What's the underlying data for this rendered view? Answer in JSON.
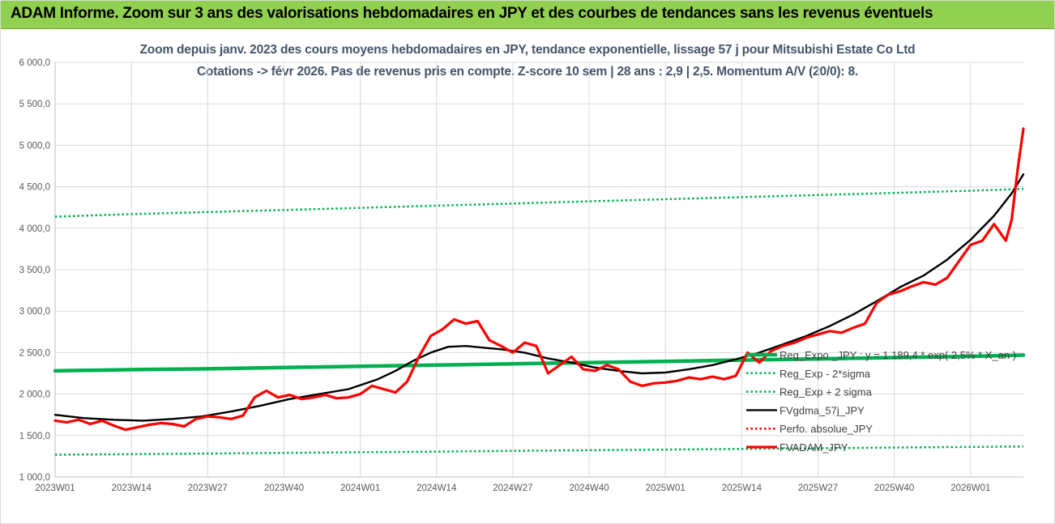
{
  "header": {
    "title": "ADAM Informe. Zoom sur 3 ans des valorisations hebdomadaires en JPY et des courbes de tendances sans les revenus éventuels"
  },
  "chart_data": {
    "type": "line",
    "title": "Zoom depuis janv. 2023 des cours moyens hebdomadaires en JPY, tendance exponentielle, lissage 57 j pour Mitsubishi Estate Co Ltd",
    "subtitle": "Cotations -> févr 2026.  Pas de revenus pris en compte. Z-score 10 sem | 28 ans : 2,9 | 2,5. Momentum A/V (20/0): 8.",
    "xlabel": "",
    "ylabel": "",
    "ylim": [
      1000,
      6000
    ],
    "y_ticks": [
      "1 000,0",
      "1 500,0",
      "2 000,0",
      "2 500,0",
      "3 000,0",
      "3 500,0",
      "4 000,0",
      "4 500,0",
      "5 000,0",
      "5 500,0",
      "6 000,0"
    ],
    "x_ticks": [
      {
        "label": "2023W01",
        "week": 0
      },
      {
        "label": "2023W14",
        "week": 13
      },
      {
        "label": "2023W27",
        "week": 26
      },
      {
        "label": "2023W40",
        "week": 39
      },
      {
        "label": "2024W01",
        "week": 52
      },
      {
        "label": "2024W14",
        "week": 65
      },
      {
        "label": "2024W27",
        "week": 78
      },
      {
        "label": "2024W40",
        "week": 91
      },
      {
        "label": "2025W01",
        "week": 104
      },
      {
        "label": "2025W14",
        "week": 117
      },
      {
        "label": "2025W27",
        "week": 130
      },
      {
        "label": "2025W40",
        "week": 143
      },
      {
        "label": "2026W01",
        "week": 156
      }
    ],
    "x_range": [
      0,
      165
    ],
    "legend_position": "bottom-right",
    "series": [
      {
        "name": "Reg_Expo _JPY : y = 1 189,4 * exp( 2,5% * X_an )",
        "style": "thick-solid",
        "color": "#00b050",
        "x": [
          0,
          4,
          9,
          13,
          26,
          39,
          52,
          65,
          78,
          91,
          104,
          117,
          130,
          143,
          156,
          165
        ],
        "values": [
          2280,
          2285,
          2290,
          2295,
          2305,
          2320,
          2335,
          2350,
          2365,
          2380,
          2395,
          2410,
          2425,
          2440,
          2455,
          2470
        ]
      },
      {
        "name": "Reg_Exp - 2*sigma",
        "style": "dotted",
        "color": "#00b050",
        "x": [
          0,
          13,
          26,
          39,
          52,
          65,
          78,
          91,
          104,
          117,
          130,
          143,
          156,
          165
        ],
        "values": [
          1270,
          1275,
          1283,
          1291,
          1299,
          1307,
          1315,
          1323,
          1331,
          1339,
          1347,
          1355,
          1363,
          1368
        ]
      },
      {
        "name": "Reg_Exp + 2 sigma",
        "style": "dotted",
        "color": "#00b050",
        "x": [
          0,
          13,
          26,
          39,
          52,
          65,
          78,
          91,
          104,
          117,
          130,
          143,
          156,
          165
        ],
        "values": [
          4140,
          4170,
          4195,
          4220,
          4245,
          4272,
          4298,
          4324,
          4350,
          4375,
          4400,
          4426,
          4452,
          4475
        ]
      },
      {
        "name": "FVgdma_57j_JPY",
        "style": "solid",
        "color": "#000000",
        "x": [
          0,
          5,
          10,
          15,
          20,
          25,
          30,
          35,
          40,
          45,
          50,
          55,
          58,
          61,
          64,
          67,
          70,
          73,
          76,
          80,
          84,
          88,
          92,
          96,
          100,
          104,
          108,
          112,
          116,
          120,
          124,
          128,
          132,
          136,
          140,
          144,
          148,
          152,
          156,
          160,
          163,
          165
        ],
        "values": [
          1750,
          1710,
          1690,
          1680,
          1700,
          1730,
          1790,
          1860,
          1940,
          2000,
          2060,
          2180,
          2280,
          2400,
          2500,
          2570,
          2580,
          2560,
          2540,
          2500,
          2430,
          2380,
          2320,
          2280,
          2250,
          2260,
          2300,
          2350,
          2420,
          2500,
          2600,
          2700,
          2820,
          2960,
          3120,
          3290,
          3430,
          3620,
          3860,
          4150,
          4420,
          4650
        ]
      },
      {
        "name": "Perfo. absolue_JPY",
        "style": "dotted",
        "color": "#ff0000",
        "x": [],
        "values": []
      },
      {
        "name": "FVADAM_JPY",
        "style": "thick-solid",
        "color": "#ff0000",
        "x": [
          0,
          2,
          4,
          6,
          8,
          10,
          12,
          14,
          16,
          18,
          20,
          22,
          24,
          26,
          28,
          30,
          32,
          34,
          36,
          38,
          40,
          42,
          44,
          46,
          48,
          50,
          52,
          54,
          56,
          58,
          60,
          62,
          64,
          66,
          68,
          70,
          72,
          74,
          76,
          78,
          80,
          82,
          84,
          86,
          88,
          90,
          92,
          94,
          96,
          98,
          100,
          102,
          104,
          106,
          108,
          110,
          112,
          114,
          116,
          118,
          120,
          122,
          124,
          126,
          128,
          130,
          132,
          134,
          136,
          138,
          140,
          142,
          144,
          146,
          148,
          150,
          152,
          154,
          156,
          158,
          160,
          162,
          163,
          164,
          165
        ],
        "values": [
          1680,
          1660,
          1690,
          1640,
          1680,
          1620,
          1570,
          1600,
          1630,
          1650,
          1640,
          1610,
          1700,
          1730,
          1720,
          1700,
          1740,
          1960,
          2040,
          1960,
          1990,
          1940,
          1960,
          1990,
          1950,
          1960,
          2000,
          2100,
          2060,
          2020,
          2150,
          2450,
          2700,
          2780,
          2900,
          2850,
          2880,
          2650,
          2580,
          2500,
          2620,
          2580,
          2250,
          2350,
          2450,
          2300,
          2280,
          2350,
          2300,
          2150,
          2100,
          2130,
          2140,
          2160,
          2200,
          2180,
          2210,
          2180,
          2220,
          2500,
          2380,
          2520,
          2580,
          2620,
          2680,
          2720,
          2760,
          2740,
          2800,
          2850,
          3100,
          3200,
          3240,
          3300,
          3350,
          3320,
          3400,
          3600,
          3800,
          3850,
          4050,
          3850,
          4100,
          4700,
          5200
        ]
      }
    ]
  }
}
